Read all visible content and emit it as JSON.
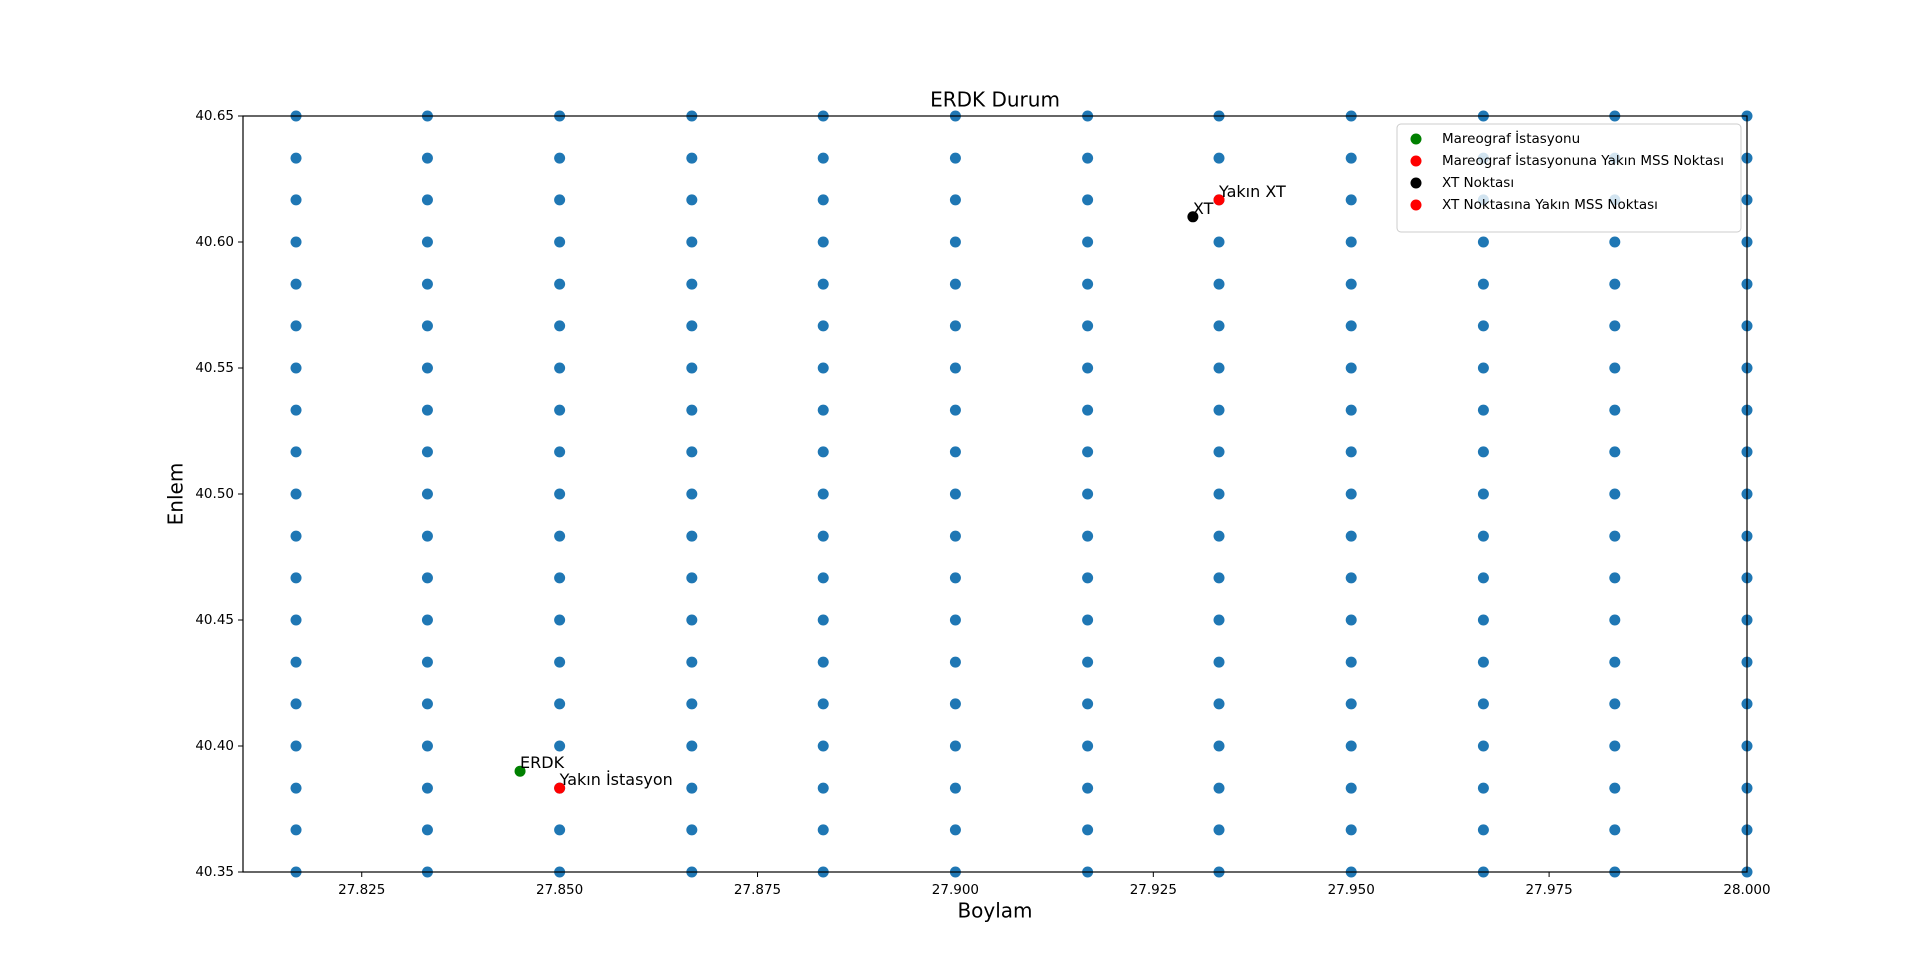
{
  "chart_data": {
    "type": "scatter",
    "title": "ERDK Durum",
    "x_label": "Boylam",
    "y_label": "Enlem",
    "xlim": [
      27.81,
      28.0
    ],
    "ylim": [
      40.35,
      40.65
    ],
    "xticks": [
      27.825,
      {
        "value": 27.85,
        "label": "27.850"
      },
      27.875,
      {
        "value": 27.9,
        "label": "27.900"
      },
      27.925,
      {
        "value": 27.95,
        "label": "27.950"
      },
      27.975,
      {
        "value": 28.0,
        "label": "28.000"
      }
    ],
    "yticks": [
      40.35,
      {
        "value": 40.4,
        "label": "40.40"
      },
      40.45,
      {
        "value": 40.5,
        "label": "40.50"
      },
      40.55,
      {
        "value": 40.6,
        "label": "40.60"
      },
      40.65
    ],
    "legend": "upper right",
    "series": [
      {
        "color": "#1f77b4",
        "x": [
          27.8167,
          27.8167,
          27.8167,
          27.8167,
          27.8167,
          27.8167,
          27.8167,
          27.8167,
          27.8167,
          27.8167,
          27.8167,
          27.8167,
          27.8167,
          27.8167,
          27.8167,
          27.8167,
          27.8167,
          27.8167,
          27.8167,
          27.8333,
          27.8333,
          27.8333,
          27.8333,
          27.8333,
          27.8333,
          27.8333,
          27.8333,
          27.8333,
          27.8333,
          27.8333,
          27.8333,
          27.8333,
          27.8333,
          27.8333,
          27.8333,
          27.8333,
          27.8333,
          27.8333,
          27.85,
          27.85,
          27.85,
          27.85,
          27.85,
          27.85,
          27.85,
          27.85,
          27.85,
          27.85,
          27.85,
          27.85,
          27.85,
          27.85,
          27.85,
          27.85,
          27.85,
          27.85,
          27.85,
          27.8667,
          27.8667,
          27.8667,
          27.8667,
          27.8667,
          27.8667,
          27.8667,
          27.8667,
          27.8667,
          27.8667,
          27.8667,
          27.8667,
          27.8667,
          27.8667,
          27.8667,
          27.8667,
          27.8667,
          27.8667,
          27.8667,
          27.8833,
          27.8833,
          27.8833,
          27.8833,
          27.8833,
          27.8833,
          27.8833,
          27.8833,
          27.8833,
          27.8833,
          27.8833,
          27.8833,
          27.8833,
          27.8833,
          27.8833,
          27.8833,
          27.8833,
          27.8833,
          27.8833,
          27.9,
          27.9,
          27.9,
          27.9,
          27.9,
          27.9,
          27.9,
          27.9,
          27.9,
          27.9,
          27.9,
          27.9,
          27.9,
          27.9,
          27.9,
          27.9,
          27.9,
          27.9,
          27.9,
          27.9167,
          27.9167,
          27.9167,
          27.9167,
          27.9167,
          27.9167,
          27.9167,
          27.9167,
          27.9167,
          27.9167,
          27.9167,
          27.9167,
          27.9167,
          27.9167,
          27.9167,
          27.9167,
          27.9167,
          27.9167,
          27.9167,
          27.9333,
          27.9333,
          27.9333,
          27.9333,
          27.9333,
          27.9333,
          27.9333,
          27.9333,
          27.9333,
          27.9333,
          27.9333,
          27.9333,
          27.9333,
          27.9333,
          27.9333,
          27.9333,
          27.9333,
          27.9333,
          27.9333,
          27.95,
          27.95,
          27.95,
          27.95,
          27.95,
          27.95,
          27.95,
          27.95,
          27.95,
          27.95,
          27.95,
          27.95,
          27.95,
          27.95,
          27.95,
          27.95,
          27.95,
          27.95,
          27.95,
          27.9667,
          27.9667,
          27.9667,
          27.9667,
          27.9667,
          27.9667,
          27.9667,
          27.9667,
          27.9667,
          27.9667,
          27.9667,
          27.9667,
          27.9667,
          27.9667,
          27.9667,
          27.9667,
          27.9667,
          27.9667,
          27.9667,
          27.9833,
          27.9833,
          27.9833,
          27.9833,
          27.9833,
          27.9833,
          27.9833,
          27.9833,
          27.9833,
          27.9833,
          27.9833,
          27.9833,
          27.9833,
          27.9833,
          27.9833,
          27.9833,
          27.9833,
          27.9833,
          27.9833,
          28.0,
          28.0,
          28.0,
          28.0,
          28.0,
          28.0,
          28.0,
          28.0,
          28.0,
          28.0,
          28.0,
          28.0,
          28.0,
          28.0,
          28.0,
          28.0,
          28.0,
          28.0,
          28.0
        ],
        "y": [
          40.35,
          40.3667,
          40.3833,
          40.4,
          40.4167,
          40.4333,
          40.45,
          40.4667,
          40.4833,
          40.5,
          40.5167,
          40.5333,
          40.55,
          40.5667,
          40.5833,
          40.6,
          40.6167,
          40.6333,
          40.65,
          40.35,
          40.3667,
          40.3833,
          40.4,
          40.4167,
          40.4333,
          40.45,
          40.4667,
          40.4833,
          40.5,
          40.5167,
          40.5333,
          40.55,
          40.5667,
          40.5833,
          40.6,
          40.6167,
          40.6333,
          40.65,
          40.35,
          40.3667,
          40.3833,
          40.4,
          40.4167,
          40.4333,
          40.45,
          40.4667,
          40.4833,
          40.5,
          40.5167,
          40.5333,
          40.55,
          40.5667,
          40.5833,
          40.6,
          40.6167,
          40.6333,
          40.65,
          40.35,
          40.3667,
          40.3833,
          40.4,
          40.4167,
          40.4333,
          40.45,
          40.4667,
          40.4833,
          40.5,
          40.5167,
          40.5333,
          40.55,
          40.5667,
          40.5833,
          40.6,
          40.6167,
          40.6333,
          40.65,
          40.35,
          40.3667,
          40.3833,
          40.4,
          40.4167,
          40.4333,
          40.45,
          40.4667,
          40.4833,
          40.5,
          40.5167,
          40.5333,
          40.55,
          40.5667,
          40.5833,
          40.6,
          40.6167,
          40.6333,
          40.65,
          40.35,
          40.3667,
          40.3833,
          40.4,
          40.4167,
          40.4333,
          40.45,
          40.4667,
          40.4833,
          40.5,
          40.5167,
          40.5333,
          40.55,
          40.5667,
          40.5833,
          40.6,
          40.6167,
          40.6333,
          40.65,
          40.35,
          40.3667,
          40.3833,
          40.4,
          40.4167,
          40.4333,
          40.45,
          40.4667,
          40.4833,
          40.5,
          40.5167,
          40.5333,
          40.55,
          40.5667,
          40.5833,
          40.6,
          40.6167,
          40.6333,
          40.65,
          40.35,
          40.3667,
          40.3833,
          40.4,
          40.4167,
          40.4333,
          40.45,
          40.4667,
          40.4833,
          40.5,
          40.5167,
          40.5333,
          40.55,
          40.5667,
          40.5833,
          40.6,
          40.6167,
          40.6333,
          40.65,
          40.35,
          40.3667,
          40.3833,
          40.4,
          40.4167,
          40.4333,
          40.45,
          40.4667,
          40.4833,
          40.5,
          40.5167,
          40.5333,
          40.55,
          40.5667,
          40.5833,
          40.6,
          40.6167,
          40.6333,
          40.65,
          40.35,
          40.3667,
          40.3833,
          40.4,
          40.4167,
          40.4333,
          40.45,
          40.4667,
          40.4833,
          40.5,
          40.5167,
          40.5333,
          40.55,
          40.5667,
          40.5833,
          40.6,
          40.6167,
          40.6333,
          40.65,
          40.35,
          40.3667,
          40.3833,
          40.4,
          40.4167,
          40.4333,
          40.45,
          40.4667,
          40.4833,
          40.5,
          40.5167,
          40.5333,
          40.55,
          40.5667,
          40.5833,
          40.6,
          40.6167,
          40.6333,
          40.65,
          40.35,
          40.3667,
          40.3833,
          40.4,
          40.4167,
          40.4333,
          40.45,
          40.4667,
          40.4833,
          40.5,
          40.5167,
          40.5333,
          40.55,
          40.5667,
          40.5833,
          40.6,
          40.6167,
          40.6333,
          40.65
        ]
      },
      {
        "name": "Mareograf İstasyonu",
        "color": "#008000",
        "x": [
          27.845
        ],
        "y": [
          40.39
        ],
        "labels": [
          "ERDK"
        ]
      },
      {
        "name": "Mareograf İstasyonuna Yakın MSS Noktası",
        "color": "#ff0000",
        "x": [
          27.85
        ],
        "y": [
          40.3833
        ],
        "labels": [
          "Yakın İstasyon"
        ]
      },
      {
        "name": "XT Noktası",
        "color": "#000000",
        "x": [
          27.93
        ],
        "y": [
          40.61
        ],
        "labels": [
          "XT"
        ]
      },
      {
        "name": "XT Noktasına Yakın MSS Noktası",
        "color": "#ff0000",
        "x": [
          27.9333
        ],
        "y": [
          40.6167
        ],
        "labels": [
          "Yakın XT"
        ]
      }
    ]
  }
}
